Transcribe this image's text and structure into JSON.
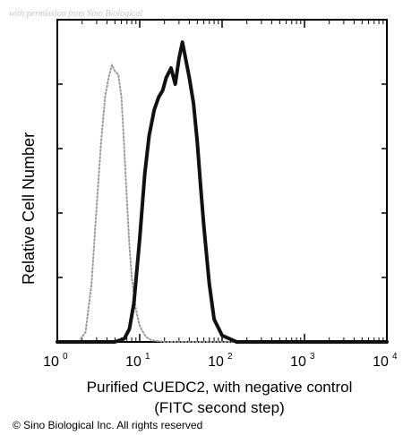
{
  "watermark": "with permission from Sino Biological",
  "copyright": "© Sino Biological Inc. All rights reserved",
  "colors": {
    "axis": "#000000",
    "sample": "#111111",
    "control": "#9a9a9a"
  },
  "chart_data": {
    "type": "line",
    "title": "",
    "xlabel_line1": "Purified CUEDC2, with negative control",
    "xlabel_line2": "(FITC second step)",
    "ylabel": "Relative Cell Number",
    "x_scale": "log",
    "xlim": [
      1,
      10000
    ],
    "ylim": [
      0,
      100
    ],
    "x_ticks": [
      {
        "base": "10",
        "exp": "0"
      },
      {
        "base": "10",
        "exp": "1"
      },
      {
        "base": "10",
        "exp": "2"
      },
      {
        "base": "10",
        "exp": "3"
      },
      {
        "base": "10",
        "exp": "4"
      }
    ],
    "grid": false,
    "legend": "none",
    "series": [
      {
        "style": "dotted",
        "x": [
          1,
          1.8,
          2.2,
          2.6,
          3.0,
          3.4,
          3.8,
          4.2,
          4.6,
          5.0,
          5.5,
          6.0,
          6.5,
          7.0,
          7.5,
          8.0,
          9.0,
          10,
          11,
          12,
          14,
          20,
          100,
          10000
        ],
        "y": [
          0,
          0,
          3,
          18,
          42,
          62,
          76,
          82,
          86,
          84,
          83,
          76,
          60,
          44,
          30,
          20,
          10,
          5,
          3,
          1.5,
          0.5,
          0,
          0,
          0
        ]
      },
      {
        "style": "solid",
        "x": [
          1,
          5,
          6.5,
          7.5,
          8.5,
          10,
          11.5,
          13,
          15,
          17,
          19,
          21,
          24,
          27,
          30,
          33,
          36,
          40,
          45,
          50,
          55,
          60,
          70,
          80,
          100,
          150,
          10000
        ],
        "y": [
          0,
          0,
          1,
          4,
          12,
          32,
          52,
          64,
          72,
          76,
          78,
          82,
          85,
          80,
          88,
          93,
          88,
          82,
          74,
          62,
          48,
          36,
          18,
          7,
          2,
          0,
          0
        ]
      }
    ]
  }
}
